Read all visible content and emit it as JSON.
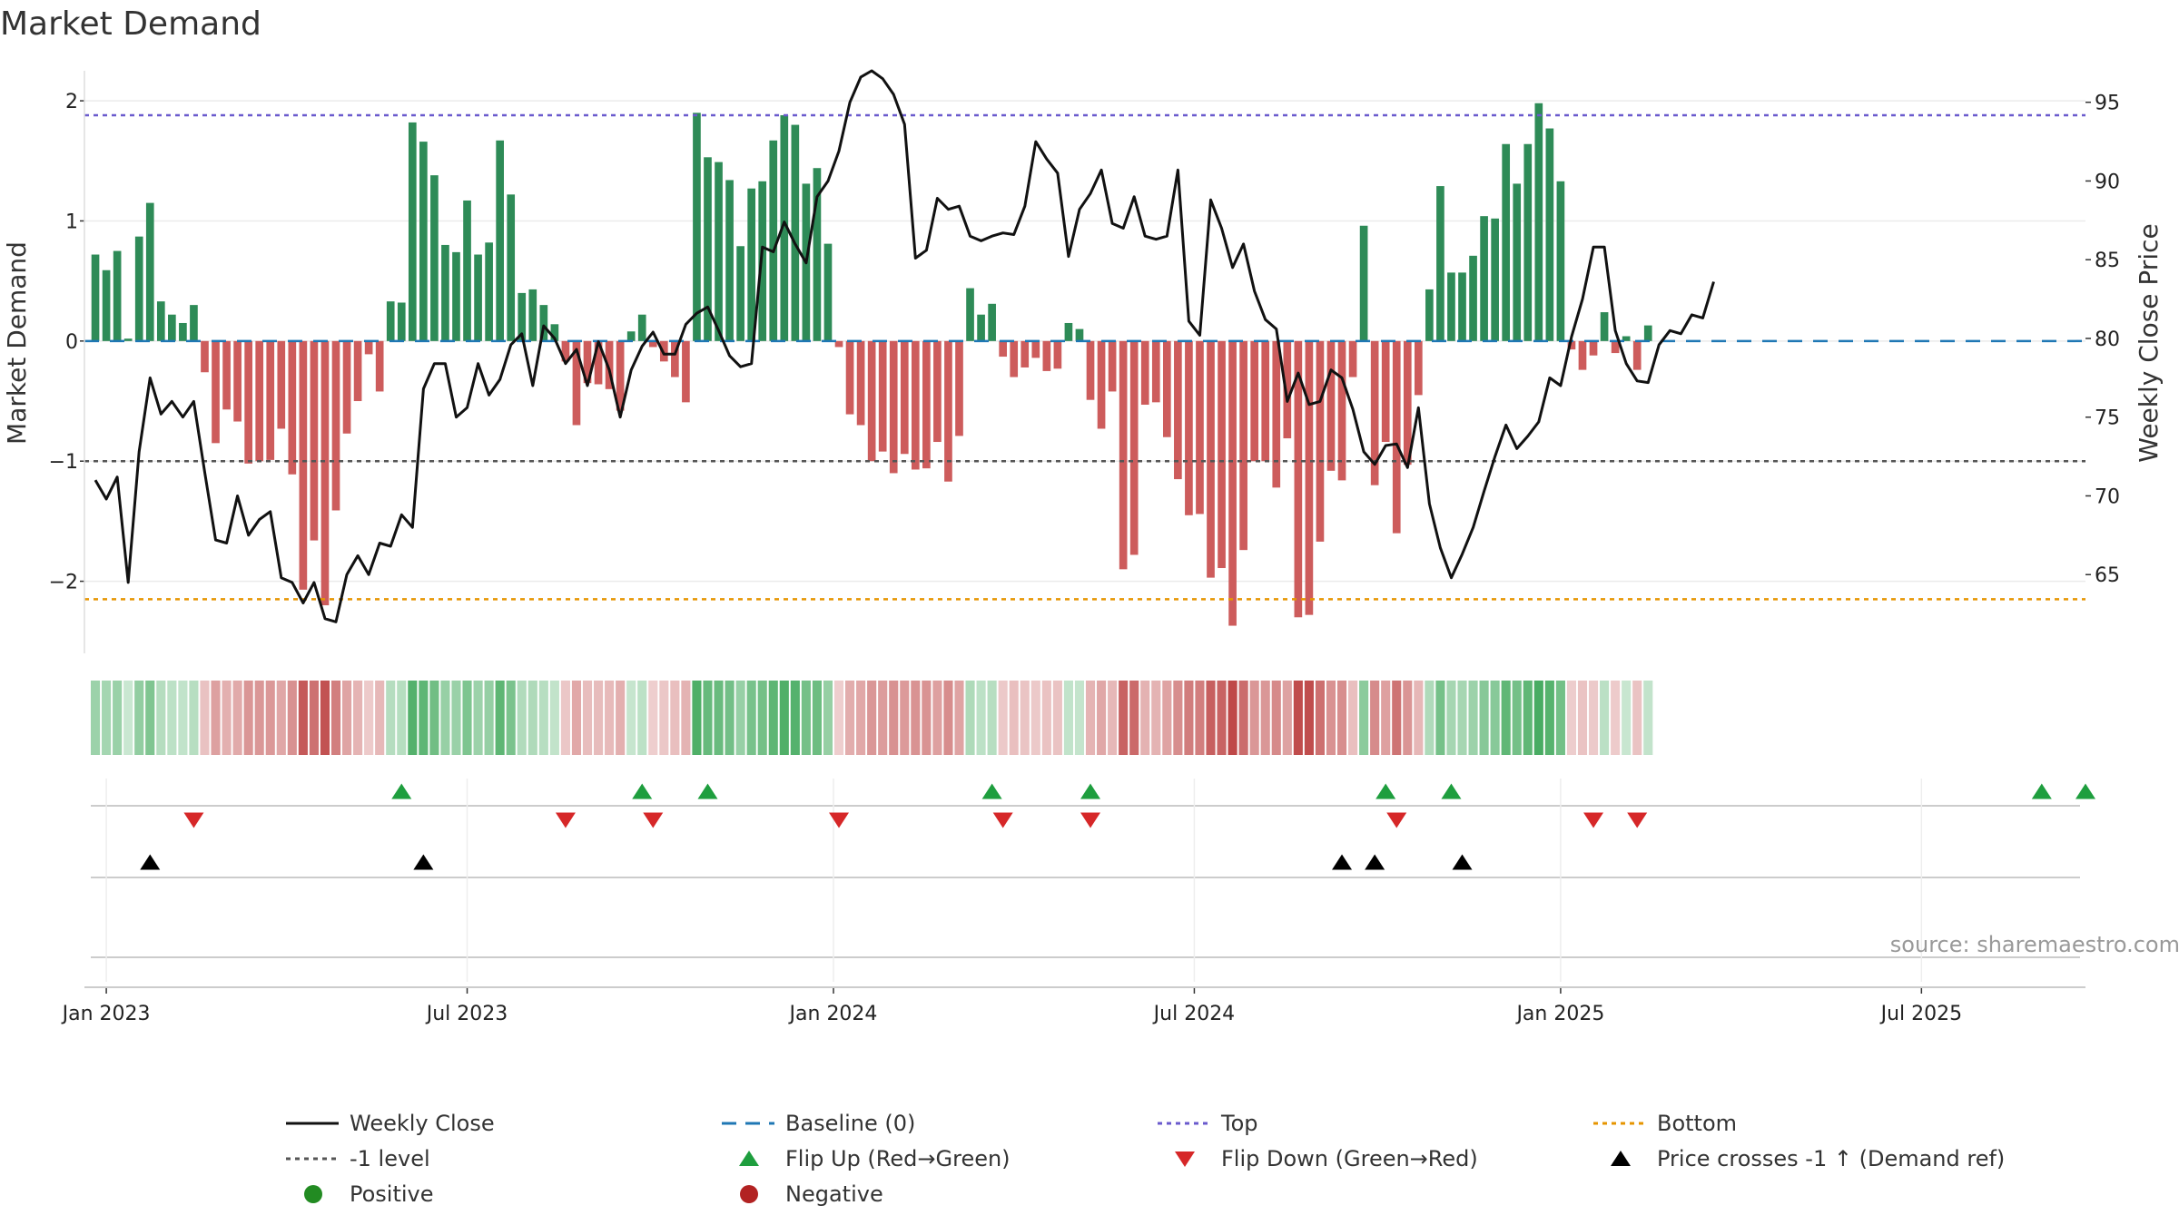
{
  "chart_data": {
    "type": "bar",
    "title": "Market Demand",
    "ylabel": "Market Demand",
    "ylabel_right": "Weekly Close Price",
    "ylim": [
      -2.6,
      2.25
    ],
    "ylim_right": [
      60,
      97
    ],
    "yticks": [
      2,
      1,
      0,
      -1,
      -2
    ],
    "ytick_labels": [
      "2",
      "1",
      "0",
      "−1",
      "−2"
    ],
    "yticks_right": [
      95,
      90,
      85,
      80,
      75,
      70,
      65
    ],
    "ytick_labels_right": [
      "95",
      "90",
      "85",
      "80",
      "75",
      "70",
      "65"
    ],
    "x_range_weeks": [
      -1,
      182
    ],
    "xticks_weeks": [
      1,
      34,
      67.5,
      100.5,
      134,
      167
    ],
    "xtick_labels": [
      "Jan 2023",
      "Jul 2023",
      "Jan 2024",
      "Jul 2024",
      "Jan 2025",
      "Jul 2025"
    ],
    "reference_lines": {
      "top": 1.88,
      "bottom": -2.15,
      "level_minus1": -1,
      "baseline": 0
    },
    "demand": [
      0.72,
      0.59,
      0.75,
      0.02,
      0.87,
      1.15,
      0.33,
      0.22,
      0.15,
      0.3,
      -0.26,
      -0.85,
      -0.57,
      -0.67,
      -1.02,
      -1.0,
      -0.99,
      -0.73,
      -1.11,
      -2.07,
      -1.66,
      -2.2,
      -1.41,
      -0.77,
      -0.5,
      -0.11,
      -0.42,
      0.33,
      0.32,
      1.82,
      1.66,
      1.38,
      0.8,
      0.74,
      1.17,
      0.72,
      0.82,
      1.67,
      1.22,
      0.4,
      0.43,
      0.3,
      0.14,
      -0.17,
      -0.7,
      -0.35,
      -0.36,
      -0.4,
      -0.58,
      0.08,
      0.22,
      -0.05,
      -0.17,
      -0.3,
      -0.51,
      1.9,
      1.53,
      1.49,
      1.34,
      0.79,
      1.27,
      1.33,
      1.67,
      1.88,
      1.8,
      1.31,
      1.44,
      0.81,
      -0.05,
      -0.61,
      -0.7,
      -1.0,
      -0.92,
      -1.1,
      -0.94,
      -1.07,
      -1.06,
      -0.84,
      -1.17,
      -0.79,
      0.44,
      0.22,
      0.31,
      -0.13,
      -0.3,
      -0.22,
      -0.14,
      -0.25,
      -0.23,
      0.15,
      0.1,
      -0.49,
      -0.73,
      -0.42,
      -1.9,
      -1.78,
      -0.53,
      -0.51,
      -0.8,
      -1.15,
      -1.45,
      -1.44,
      -1.97,
      -1.89,
      -2.37,
      -1.74,
      -1.0,
      -1.0,
      -1.22,
      -0.81,
      -2.3,
      -2.28,
      -1.67,
      -1.08,
      -1.16,
      -0.3,
      0.96,
      -1.2,
      -0.84,
      -1.6,
      -1.03,
      -0.45,
      0.43,
      1.29,
      0.57,
      0.57,
      0.71,
      1.04,
      1.02,
      1.64,
      1.31,
      1.64,
      1.98,
      1.77,
      1.33,
      -0.07,
      -0.24,
      -0.12,
      0.24,
      -0.1,
      0.04,
      -0.24,
      0.13
    ],
    "weekly_close": [
      71.0,
      69.8,
      71.2,
      64.5,
      72.8,
      77.5,
      75.2,
      76.0,
      75.0,
      76.0,
      71.5,
      67.2,
      67.0,
      70.0,
      67.5,
      68.5,
      69.0,
      64.8,
      64.5,
      63.2,
      64.5,
      62.2,
      62.0,
      65.0,
      66.2,
      65.0,
      67.0,
      66.8,
      68.8,
      68.0,
      76.8,
      78.4,
      78.4,
      75.0,
      75.6,
      78.4,
      76.4,
      77.4,
      79.6,
      80.3,
      77.0,
      80.8,
      80.0,
      78.4,
      79.3,
      77.0,
      79.8,
      78.0,
      75.0,
      78.0,
      79.5,
      80.4,
      79.0,
      79.0,
      80.9,
      81.6,
      82.0,
      80.5,
      78.9,
      78.2,
      78.4,
      85.8,
      85.5,
      87.4,
      86.0,
      84.8,
      89.0,
      90.0,
      91.9,
      95.0,
      96.6,
      97.0,
      96.5,
      95.5,
      93.6,
      85.1,
      85.6,
      88.9,
      88.2,
      88.4,
      86.5,
      86.2,
      86.5,
      86.7,
      86.6,
      88.4,
      92.5,
      91.4,
      90.5,
      85.2,
      88.2,
      89.2,
      90.7,
      87.3,
      87.0,
      89.0,
      86.5,
      86.3,
      86.5,
      90.7,
      81.1,
      80.2,
      88.8,
      87.0,
      84.5,
      86.0,
      83.0,
      81.2,
      80.6,
      76.0,
      77.8,
      75.8,
      76.0,
      78.0,
      77.5,
      75.5,
      72.8,
      72.0,
      73.2,
      73.3,
      71.8,
      75.6,
      69.5,
      66.7,
      64.8,
      66.3,
      68.0,
      70.3,
      72.5,
      74.5,
      73.0,
      73.8,
      74.7,
      77.5,
      77.0,
      80.1,
      82.5,
      85.8,
      85.8,
      80.5,
      78.4,
      77.3,
      77.2,
      79.6,
      80.5,
      80.3,
      81.5,
      81.3,
      83.6
    ],
    "demand_strip": [
      0.72,
      0.59,
      0.75,
      0.02,
      0.87,
      1.15,
      0.33,
      0.22,
      0.15,
      0.3,
      -0.26,
      -0.85,
      -0.57,
      -0.67,
      -1.02,
      -1.0,
      -0.99,
      -0.73,
      -1.11,
      -2.07,
      -1.66,
      -2.2,
      -1.41,
      -0.77,
      -0.5,
      -0.11,
      -0.42,
      0.33,
      0.32,
      1.82,
      1.66,
      1.38,
      0.8,
      0.74,
      1.17,
      0.72,
      0.82,
      1.67,
      1.22,
      0.4,
      0.43,
      0.3,
      0.14,
      -0.17,
      -0.7,
      -0.35,
      -0.36,
      -0.4,
      -0.58,
      0.08,
      0.22,
      -0.05,
      -0.17,
      -0.3,
      -0.51,
      1.9,
      1.53,
      1.49,
      1.34,
      0.79,
      1.27,
      1.33,
      1.67,
      1.88,
      1.8,
      1.31,
      1.44,
      0.81,
      -0.05,
      -0.61,
      -0.7,
      -1.0,
      -0.92,
      -1.1,
      -0.94,
      -1.07,
      -1.06,
      -0.84,
      -1.17,
      -0.79,
      0.44,
      0.22,
      0.31,
      -0.13,
      -0.3,
      -0.22,
      -0.14,
      -0.25,
      -0.23,
      0.15,
      0.1,
      -0.49,
      -0.73,
      -0.42,
      -1.9,
      -1.78,
      -0.53,
      -0.51,
      -0.8,
      -1.15,
      -1.45,
      -1.44,
      -1.97,
      -1.89,
      -2.37,
      -1.74,
      -1.0,
      -1.0,
      -1.22,
      -0.81,
      -2.3,
      -2.28,
      -1.67,
      -1.08,
      -1.16,
      -0.3,
      0.96,
      -1.2,
      -0.84,
      -1.6,
      -1.03,
      -0.45,
      0.43,
      1.29,
      0.57,
      0.57,
      0.71,
      1.04,
      1.02,
      1.64,
      1.31,
      1.64,
      1.98,
      1.77,
      1.33,
      -0.07,
      -0.24,
      -0.12,
      0.24,
      -0.1,
      0.04,
      -0.24,
      0.13
    ],
    "flip_up_weeks": [
      28,
      50,
      56,
      82,
      91,
      118,
      124,
      178,
      182
    ],
    "flip_down_weeks": [
      9,
      43,
      51,
      68,
      83,
      91,
      119,
      137,
      141
    ],
    "price_cross_weeks": [
      5,
      30,
      114,
      117,
      125
    ],
    "source_note": "source: sharemaestro.com",
    "colors": {
      "positive_bar": "#2e8b57",
      "negative_bar": "#cd5c5c",
      "price_line": "#111111",
      "baseline": "#1f77b4",
      "top_line": "#6a5acd",
      "bottom_line": "#e69500",
      "level_line": "#555555",
      "flip_up": "#1e9e3e",
      "flip_down": "#d62728",
      "cross_marker": "#000000",
      "positive_dot": "#228b22",
      "negative_dot": "#b22222"
    },
    "legend": [
      {
        "label": "Weekly Close",
        "kind": "line",
        "color": "#111111"
      },
      {
        "label": "Baseline (0)",
        "kind": "dash",
        "color": "#1f77b4"
      },
      {
        "label": "Top",
        "kind": "dot",
        "color": "#6a5acd"
      },
      {
        "label": "Bottom",
        "kind": "dot",
        "color": "#e69500"
      },
      {
        "label": "-1 level",
        "kind": "dot",
        "color": "#555555"
      },
      {
        "label": "Flip Up (Red→Green)",
        "kind": "tri-up",
        "color": "#1e9e3e"
      },
      {
        "label": "Flip Down (Green→Red)",
        "kind": "tri-down",
        "color": "#d62728"
      },
      {
        "label": "Price crosses -1 ↑ (Demand ref)",
        "kind": "tri-up",
        "color": "#000000"
      },
      {
        "label": "Positive",
        "kind": "circle",
        "color": "#228b22"
      },
      {
        "label": "Negative",
        "kind": "circle",
        "color": "#b22222"
      }
    ]
  }
}
